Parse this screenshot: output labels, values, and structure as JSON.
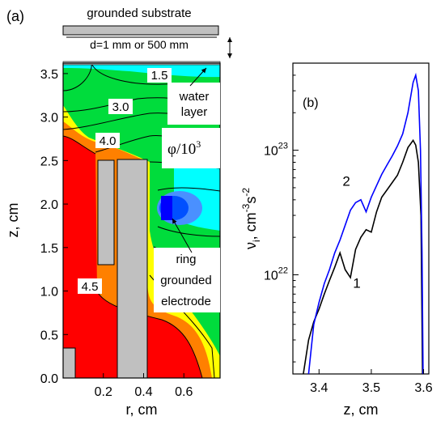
{
  "chart_data": [
    {
      "type": "contour",
      "panel_label": "(a)",
      "xlabel": "r, cm",
      "ylabel": "z, cm",
      "xlim": [
        0,
        0.78
      ],
      "ylim": [
        0,
        3.62
      ],
      "xticks": [
        0.2,
        0.4,
        0.6
      ],
      "yticks": [
        0.0,
        0.5,
        1.0,
        1.5,
        2.0,
        2.5,
        3.0,
        3.5
      ],
      "quantity_label": "φ/10",
      "quantity_exp": "3",
      "contour_labels": [
        "1.5",
        "3.0",
        "4.0",
        "4.5"
      ],
      "annotations": {
        "substrate": "grounded substrate",
        "gap": "d=1 mm or 500 mm",
        "water": [
          "water",
          "layer"
        ],
        "electrode": [
          "ring",
          "grounded",
          "electrode"
        ]
      },
      "colors": {
        "red": "#ff0000",
        "orange": "#ff8000",
        "yellow": "#ffff00",
        "green": "#00dc3c",
        "cyan": "#00ffff",
        "blue": "#0000ff",
        "gray": "#c0c0c0"
      }
    },
    {
      "type": "line",
      "panel_label": "(b)",
      "xlabel": "z, cm",
      "ylabel_main": "ν",
      "ylabel_sub": "i",
      "ylabel_unit": ", cm",
      "ylabel_exp1": "-3",
      "ylabel_s": "s",
      "ylabel_exp2": "-2",
      "xlim": [
        3.35,
        3.61
      ],
      "yscale": "log",
      "ylim": [
        1.6e+21,
        5e+23
      ],
      "xticks": [
        "3.4",
        "3.5",
        "3.6"
      ],
      "yticks": [
        {
          "value": 1e+22,
          "base": "10",
          "exp": "22"
        },
        {
          "value": 1e+23,
          "base": "10",
          "exp": "23"
        }
      ],
      "series": [
        {
          "name": "1",
          "color": "#000000",
          "x": [
            3.37,
            3.38,
            3.39,
            3.4,
            3.41,
            3.42,
            3.43,
            3.44,
            3.45,
            3.46,
            3.47,
            3.48,
            3.49,
            3.5,
            3.51,
            3.52,
            3.53,
            3.54,
            3.55,
            3.56,
            3.57,
            3.58,
            3.585,
            3.59,
            3.595,
            3.598
          ],
          "y": [
            1.6e+21,
            3e+21,
            4.2e+21,
            5.3e+21,
            7e+21,
            9e+21,
            1.15e+22,
            1.5e+22,
            1.1e+22,
            9.5e+21,
            1.6e+22,
            2e+22,
            2.3e+22,
            2.2e+22,
            3.2e+22,
            4.2e+22,
            4.8e+22,
            5.5e+22,
            6.3e+22,
            8e+22,
            1.05e+23,
            1.2e+23,
            1.1e+23,
            8e+22,
            3e+22,
            1.6e+21
          ]
        },
        {
          "name": "2",
          "color": "#0000ff",
          "x": [
            3.38,
            3.39,
            3.4,
            3.41,
            3.42,
            3.43,
            3.44,
            3.45,
            3.46,
            3.47,
            3.48,
            3.49,
            3.5,
            3.51,
            3.52,
            3.53,
            3.54,
            3.55,
            3.56,
            3.57,
            3.58,
            3.585,
            3.59,
            3.594,
            3.597,
            3.599
          ],
          "y": [
            1.6e+21,
            4e+21,
            6e+21,
            8.5e+21,
            1.1e+22,
            1.5e+22,
            1.9e+22,
            2.5e+22,
            3.3e+22,
            3.8e+22,
            4e+22,
            3.2e+22,
            4.2e+22,
            5.2e+22,
            6.4e+22,
            7.6e+22,
            9e+22,
            1.08e+23,
            1.35e+23,
            2e+23,
            3.5e+23,
            4e+23,
            3e+23,
            1e+23,
            1.5e+22,
            1.6e+21
          ]
        }
      ]
    }
  ]
}
